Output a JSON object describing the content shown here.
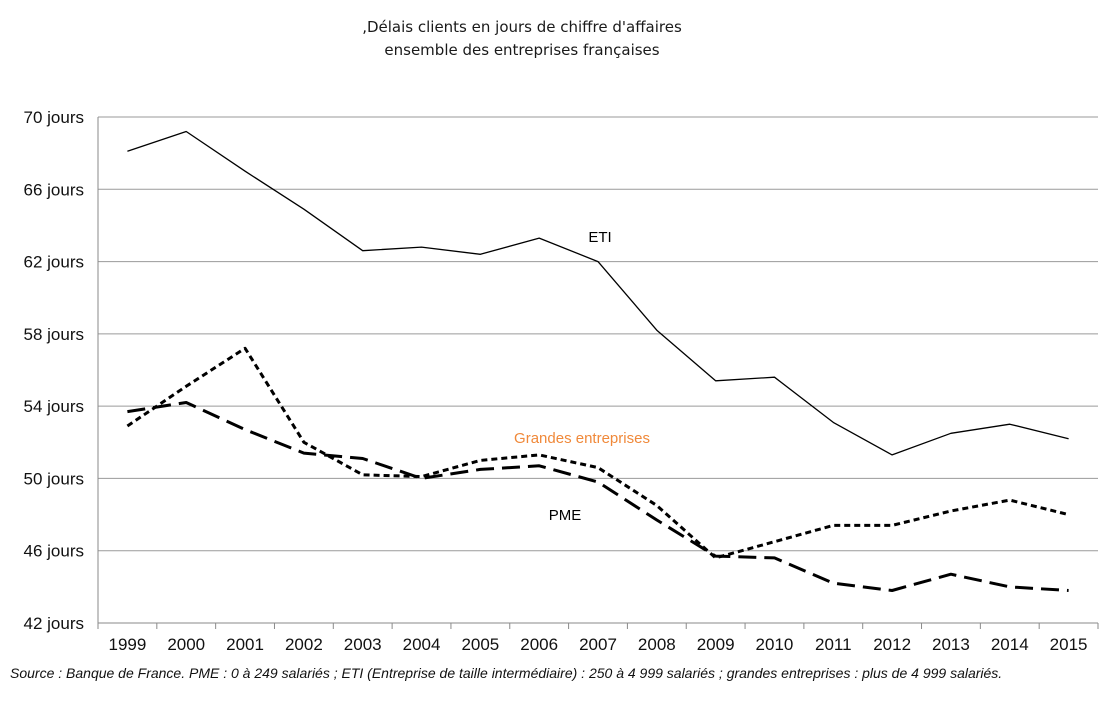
{
  "chart_data": {
    "type": "line",
    "title_lines": [
      ",Délais clients en jours de chiffre d'affaires",
      "ensemble des entreprises françaises"
    ],
    "categories": [
      "1999",
      "2000",
      "2001",
      "2002",
      "2003",
      "2004",
      "2005",
      "2006",
      "2007",
      "2008",
      "2009",
      "2010",
      "2011",
      "2012",
      "2013",
      "2014",
      "2015"
    ],
    "y_ticks": [
      "42 jours",
      "46 jours",
      "50 jours",
      "54 jours",
      "58 jours",
      "62 jours",
      "66 jours",
      "70 jours"
    ],
    "ylim": [
      42,
      70
    ],
    "grid": true,
    "series": [
      {
        "name": "ETI",
        "style": "solid",
        "color": "#000000",
        "values": [
          68.1,
          69.2,
          67.0,
          64.9,
          62.6,
          62.8,
          62.4,
          63.3,
          62.0,
          58.2,
          55.4,
          55.6,
          53.1,
          51.3,
          52.5,
          53.0,
          52.2
        ]
      },
      {
        "name": "Grandes entreprises",
        "style": "short-dash",
        "color": "#000000",
        "label_color": "#f0893a",
        "values": [
          52.9,
          55.1,
          57.2,
          52.0,
          50.2,
          50.1,
          51.0,
          51.3,
          50.6,
          48.5,
          45.6,
          46.5,
          47.4,
          47.4,
          48.2,
          48.8,
          48.0
        ]
      },
      {
        "name": "PME",
        "style": "long-dash",
        "color": "#000000",
        "values": [
          53.7,
          54.2,
          52.7,
          51.4,
          51.1,
          50.0,
          50.5,
          50.7,
          49.8,
          47.7,
          45.7,
          45.6,
          44.2,
          43.8,
          44.7,
          44.0,
          43.8
        ]
      }
    ],
    "source": "Source : Banque de France. PME : 0 à 249 salariés ; ETI (Entreprise de taille intermédiaire) : 250 à 4 999 salariés ; grandes entreprises : plus de 4 999 salariés."
  }
}
